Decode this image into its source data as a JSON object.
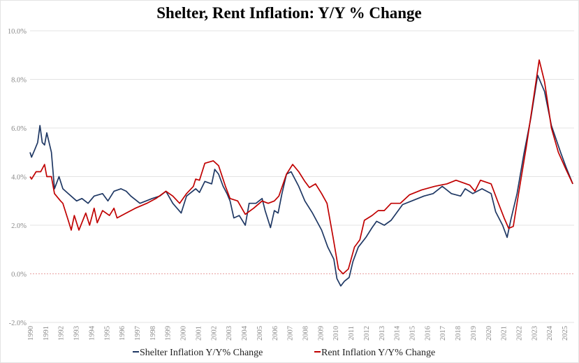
{
  "chart_data": {
    "type": "line",
    "title": "Shelter, Rent Inflation: Y/Y % Change",
    "xlabel": "",
    "ylabel": "",
    "ylim": [
      -2,
      10
    ],
    "xlim": [
      1990,
      2025.6
    ],
    "yticks": [
      -2,
      0,
      2,
      4,
      6,
      8,
      10
    ],
    "ytick_labels": [
      "-2.0%",
      "0.0%",
      "2.0%",
      "4.0%",
      "6.0%",
      "8.0%",
      "10.0%"
    ],
    "xtick_labels": [
      "1990",
      "1991",
      "1992",
      "1993",
      "1994",
      "1995",
      "1996",
      "1997",
      "1998",
      "1999",
      "2000",
      "2001",
      "2002",
      "2003",
      "2004",
      "2005",
      "2006",
      "2007",
      "2008",
      "2009",
      "2010",
      "2011",
      "2012",
      "2013",
      "2014",
      "2015",
      "2016",
      "2017",
      "2018",
      "2019",
      "2020",
      "2021",
      "2022",
      "2023",
      "2024",
      "2025"
    ],
    "grid": true,
    "legend_position": "bottom",
    "zero_line": {
      "value": 0,
      "style": "dashed",
      "color": "#e8a0a0"
    },
    "series": [
      {
        "name": "Shelter Inflation Y/Y% Change",
        "color": "#1f3864",
        "x": [
          1990.0,
          1990.1,
          1990.3,
          1990.5,
          1990.65,
          1990.8,
          1990.95,
          1991.1,
          1991.25,
          1991.4,
          1991.6,
          1991.9,
          1992.15,
          1992.5,
          1993.05,
          1993.4,
          1993.8,
          1994.2,
          1994.75,
          1995.1,
          1995.5,
          1995.95,
          1996.3,
          1996.6,
          1997.2,
          1997.6,
          1998.0,
          1998.5,
          1998.9,
          1999.35,
          1999.9,
          2000.25,
          2000.85,
          2001.1,
          2001.45,
          2001.9,
          2002.1,
          2002.35,
          2002.65,
          2002.9,
          2003.1,
          2003.35,
          2003.7,
          2004.1,
          2004.35,
          2004.8,
          2005.2,
          2005.4,
          2005.75,
          2006.0,
          2006.25,
          2006.5,
          2006.8,
          2007.1,
          2007.6,
          2008.0,
          2008.5,
          2009.1,
          2009.5,
          2009.9,
          2010.1,
          2010.35,
          2010.6,
          2010.9,
          2011.15,
          2011.5,
          2012.0,
          2012.4,
          2012.7,
          2013.2,
          2013.65,
          2014.4,
          2015.0,
          2015.8,
          2016.4,
          2017.0,
          2017.6,
          2018.2,
          2018.5,
          2019.0,
          2019.6,
          2020.2,
          2020.5,
          2020.95,
          2021.25,
          2021.5,
          2021.9,
          2022.35,
          2022.8,
          2023.25,
          2023.7,
          2024.15,
          2024.75,
          2025.1,
          2025.55
        ],
        "y": [
          5.0,
          4.8,
          5.1,
          5.4,
          6.1,
          5.4,
          5.3,
          5.8,
          5.4,
          5.0,
          3.5,
          4.0,
          3.5,
          3.3,
          3.0,
          3.1,
          2.9,
          3.2,
          3.3,
          3.0,
          3.4,
          3.5,
          3.4,
          3.2,
          2.9,
          3.0,
          3.1,
          3.2,
          3.4,
          2.9,
          2.5,
          3.2,
          3.5,
          3.35,
          3.8,
          3.7,
          4.3,
          4.1,
          3.6,
          3.3,
          3.0,
          2.3,
          2.4,
          2.0,
          2.9,
          2.9,
          3.1,
          2.6,
          1.9,
          2.6,
          2.5,
          3.3,
          4.1,
          4.2,
          3.6,
          3.0,
          2.5,
          1.8,
          1.1,
          0.6,
          -0.2,
          -0.5,
          -0.3,
          -0.15,
          0.5,
          1.1,
          1.5,
          1.9,
          2.16,
          2.0,
          2.2,
          2.85,
          3.0,
          3.2,
          3.3,
          3.6,
          3.3,
          3.2,
          3.5,
          3.3,
          3.5,
          3.3,
          2.55,
          2.0,
          1.5,
          2.25,
          3.3,
          4.95,
          6.4,
          8.17,
          7.5,
          6.1,
          5.0,
          4.4,
          3.7
        ]
      },
      {
        "name": "Rent Inflation Y/Y% Change",
        "color": "#c00000",
        "x": [
          1990.0,
          1990.1,
          1990.4,
          1990.7,
          1990.95,
          1991.1,
          1991.4,
          1991.6,
          1992.0,
          1992.15,
          1992.5,
          1992.7,
          1992.9,
          1993.2,
          1993.65,
          1993.9,
          1994.2,
          1994.4,
          1994.75,
          1995.2,
          1995.5,
          1995.7,
          1996.3,
          1996.9,
          1997.65,
          1998.25,
          1998.9,
          1999.35,
          1999.8,
          2000.25,
          2000.7,
          2000.85,
          2001.1,
          2001.45,
          2002.0,
          2002.35,
          2002.8,
          2003.1,
          2003.6,
          2004.1,
          2004.65,
          2005.2,
          2005.6,
          2006.0,
          2006.3,
          2006.8,
          2007.2,
          2007.6,
          2008.0,
          2008.3,
          2008.7,
          2009.1,
          2009.45,
          2009.85,
          2010.2,
          2010.5,
          2010.85,
          2011.25,
          2011.6,
          2011.9,
          2012.4,
          2012.8,
          2013.2,
          2013.65,
          2014.25,
          2014.85,
          2015.65,
          2016.5,
          2017.3,
          2017.9,
          2018.8,
          2019.14,
          2019.5,
          2020.2,
          2020.65,
          2021.05,
          2021.35,
          2021.65,
          2022.0,
          2022.5,
          2022.95,
          2023.35,
          2023.7,
          2024.15,
          2024.6,
          2025.1,
          2025.55
        ],
        "y": [
          4.0,
          3.9,
          4.2,
          4.2,
          4.5,
          4.0,
          4.0,
          3.3,
          3.0,
          2.9,
          2.2,
          1.8,
          2.4,
          1.8,
          2.5,
          2.0,
          2.7,
          2.1,
          2.6,
          2.4,
          2.7,
          2.3,
          2.5,
          2.7,
          2.9,
          3.1,
          3.4,
          3.2,
          2.9,
          3.3,
          3.6,
          3.9,
          3.85,
          4.55,
          4.65,
          4.45,
          3.6,
          3.1,
          3.0,
          2.45,
          2.7,
          3.0,
          2.9,
          3.0,
          3.2,
          4.1,
          4.5,
          4.2,
          3.8,
          3.55,
          3.7,
          3.3,
          2.9,
          1.5,
          0.2,
          0.0,
          0.2,
          1.1,
          1.4,
          2.2,
          2.4,
          2.6,
          2.6,
          2.9,
          2.9,
          3.25,
          3.45,
          3.6,
          3.7,
          3.85,
          3.65,
          3.4,
          3.85,
          3.7,
          2.95,
          2.3,
          1.87,
          1.95,
          3.3,
          5.2,
          7.1,
          8.8,
          7.9,
          6.0,
          5.0,
          4.3,
          3.7
        ]
      }
    ]
  }
}
